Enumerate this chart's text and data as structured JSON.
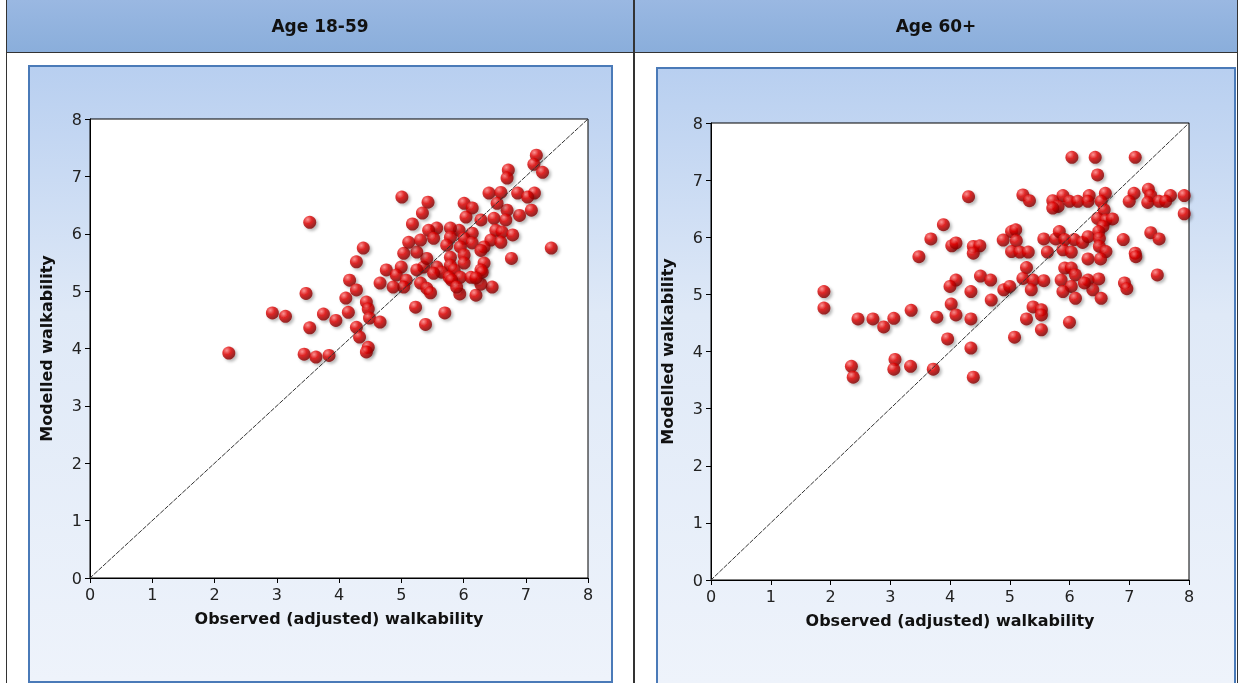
{
  "chart_data": [
    {
      "type": "scatter",
      "title": "Age 18-59",
      "xlabel": "Observed (adjusted) walkability",
      "ylabel": "Modelled walkability",
      "xlim": [
        0,
        8
      ],
      "ylim": [
        0,
        8
      ],
      "xticks": [
        0,
        1,
        2,
        3,
        4,
        5,
        6,
        7,
        8
      ],
      "yticks": [
        0,
        1,
        2,
        3,
        4,
        5,
        6,
        7,
        8
      ],
      "grid": false,
      "marker": "circle",
      "series": [
        {
          "color": "#e00000",
          "x": [
            7.17,
            7.13,
            7.27,
            6.72,
            6.7,
            5.01,
            5.43,
            5.34,
            5.18,
            7.41,
            6.77,
            5.23,
            5.7,
            5.39,
            6.2,
            6.46,
            6.28,
            5.94,
            6.41,
            6.6,
            6.87,
            7.14,
            7.03,
            7.09,
            6.9,
            6.7,
            6.54,
            6.01,
            6.14,
            6.04,
            6.28,
            6.49,
            6.68,
            6.52,
            6.62,
            6.79,
            6.44,
            6.6,
            6.33,
            6.14,
            5.93,
            5.79,
            5.57,
            5.44,
            5.52,
            5.79,
            6.01,
            6.14,
            5.73,
            5.95,
            6.28,
            5.79,
            6.01,
            6.01,
            5.79,
            5.57,
            5.36,
            5.41,
            5.25,
            5.04,
            5.12,
            5.31,
            6.33,
            6.28,
            5.65,
            5.85,
            5.77,
            5.95,
            6.12,
            5.52,
            5.25,
            5.0,
            4.76,
            4.92,
            5.08,
            5.31,
            5.41,
            5.47,
            5.04,
            4.87,
            5.81,
            5.89,
            6.3,
            6.2,
            2.23,
            3.53,
            4.39,
            4.28,
            4.17,
            4.28,
            3.47,
            4.11,
            4.44,
            2.93,
            3.14,
            3.75,
            3.95,
            4.15,
            4.47,
            4.49,
            4.28,
            3.53,
            4.33,
            4.47,
            4.44,
            3.44,
            3.63,
            3.84,
            4.66,
            4.66
          ],
          "values": [
            7.37,
            7.21,
            7.07,
            7.11,
            6.97,
            6.64,
            6.55,
            6.36,
            6.17,
            5.75,
            5.57,
            4.72,
            4.62,
            4.42,
            4.93,
            5.07,
            5.12,
            4.95,
            6.71,
            6.72,
            6.71,
            6.71,
            6.64,
            6.41,
            6.32,
            6.41,
            6.53,
            6.53,
            6.45,
            6.29,
            6.24,
            6.27,
            6.24,
            6.06,
            6.03,
            5.98,
            5.89,
            5.85,
            5.77,
            6.01,
            6.06,
            6.1,
            6.1,
            6.06,
            5.92,
            5.94,
            5.92,
            5.84,
            5.8,
            5.77,
            5.71,
            5.59,
            5.63,
            5.49,
            5.45,
            5.42,
            5.42,
            5.57,
            5.68,
            5.66,
            5.85,
            5.89,
            5.49,
            5.37,
            5.33,
            5.37,
            5.24,
            5.24,
            5.24,
            5.31,
            5.37,
            5.42,
            5.37,
            5.28,
            5.19,
            5.14,
            5.05,
            4.97,
            5.07,
            5.07,
            5.19,
            5.07,
            5.33,
            5.23,
            3.92,
            6.2,
            5.75,
            5.51,
            5.19,
            5.02,
            4.96,
            4.88,
            4.81,
            4.62,
            4.56,
            4.6,
            4.49,
            4.63,
            4.69,
            4.53,
            4.37,
            4.36,
            4.2,
            4.02,
            3.94,
            3.9,
            3.85,
            3.88,
            4.46,
            5.14
          ]
        },
        {
          "type": "line",
          "color": "#333333",
          "line_style": "dashed",
          "marker": "none",
          "x": [
            0,
            8
          ],
          "values": [
            0,
            8
          ]
        }
      ]
    },
    {
      "type": "scatter",
      "title": "Age 60+",
      "xlabel": "Observed (adjusted) walkability",
      "ylabel": "Modelled walkability",
      "xlim": [
        0,
        8
      ],
      "ylim": [
        0,
        8
      ],
      "xticks": [
        0,
        1,
        2,
        3,
        4,
        5,
        6,
        7,
        8
      ],
      "yticks": [
        0,
        1,
        2,
        3,
        4,
        5,
        6,
        7,
        8
      ],
      "grid": false,
      "marker": "circle",
      "series": [
        {
          "color": "#e00000",
          "x": [
            4.31,
            3.89,
            3.68,
            4.03,
            4.1,
            4.39,
            4.5,
            4.39,
            3.48,
            1.89,
            1.89,
            2.46,
            2.71,
            2.89,
            3.06,
            3.35,
            3.78,
            4.1,
            4.0,
            4.51,
            4.68,
            4.35,
            4.02,
            4.1,
            4.69,
            4.35,
            3.96,
            4.35,
            2.35,
            2.38,
            3.08,
            3.06,
            3.34,
            3.72,
            4.39,
            6.04,
            6.43,
            7.1,
            6.47,
            5.22,
            5.33,
            5.72,
            5.89,
            6.0,
            6.14,
            6.33,
            6.31,
            6.6,
            6.53,
            5.81,
            5.72,
            6.58,
            7.08,
            7.0,
            7.32,
            7.36,
            7.31,
            7.5,
            7.69,
            7.61,
            7.92,
            7.92,
            6.47,
            6.61,
            6.72,
            6.56,
            7.36,
            7.5,
            6.9,
            5.03,
            5.1,
            4.89,
            5.11,
            5.03,
            5.17,
            5.31,
            5.57,
            5.77,
            5.83,
            5.92,
            6.08,
            6.22,
            6.31,
            6.49,
            6.5,
            6.5,
            6.61,
            5.63,
            5.89,
            6.03,
            6.31,
            6.52,
            7.1,
            7.11,
            5.28,
            5.92,
            6.03,
            6.1,
            5.22,
            5.39,
            5.57,
            5.86,
            6.03,
            5.89,
            6.1,
            6.31,
            6.49,
            6.39,
            6.53,
            6.25,
            6.92,
            6.96,
            7.47,
            5.36,
            4.9,
            5.0,
            5.39,
            5.53,
            5.53,
            5.28,
            5.53,
            6.0,
            5.08
          ],
          "values": [
            6.71,
            6.22,
            5.97,
            5.85,
            5.9,
            5.84,
            5.85,
            5.72,
            5.66,
            5.05,
            4.76,
            4.57,
            4.57,
            4.43,
            4.58,
            4.72,
            4.6,
            5.25,
            5.14,
            5.32,
            5.25,
            5.05,
            4.83,
            4.64,
            4.9,
            4.57,
            4.22,
            4.06,
            3.74,
            3.55,
            3.86,
            3.69,
            3.74,
            3.69,
            3.55,
            7.4,
            7.4,
            7.4,
            7.09,
            6.74,
            6.64,
            6.64,
            6.73,
            6.63,
            6.63,
            6.73,
            6.63,
            6.77,
            6.63,
            6.54,
            6.51,
            6.48,
            6.77,
            6.63,
            6.84,
            6.73,
            6.61,
            6.63,
            6.73,
            6.63,
            6.73,
            6.41,
            6.33,
            6.3,
            6.32,
            6.19,
            6.08,
            5.97,
            5.96,
            6.1,
            6.13,
            5.95,
            5.94,
            5.75,
            5.74,
            5.74,
            5.97,
            5.97,
            6.1,
            5.96,
            5.96,
            5.91,
            6.01,
            6.1,
            5.98,
            5.84,
            5.75,
            5.74,
            5.78,
            5.74,
            5.62,
            5.62,
            5.72,
            5.66,
            5.47,
            5.46,
            5.46,
            5.34,
            5.28,
            5.25,
            5.24,
            5.25,
            5.14,
            5.05,
            4.93,
            5.25,
            5.27,
            5.08,
            4.93,
            5.2,
            5.2,
            5.1,
            5.34,
            5.08,
            5.08,
            5.14,
            4.78,
            4.73,
            4.64,
            4.57,
            4.38,
            4.51,
            4.25
          ]
        },
        {
          "type": "line",
          "color": "#333333",
          "line_style": "dashed",
          "marker": "none",
          "x": [
            0,
            8
          ],
          "values": [
            0,
            8
          ]
        }
      ]
    }
  ]
}
